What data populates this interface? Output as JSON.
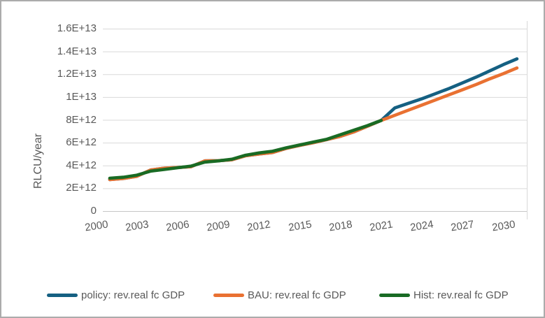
{
  "chart_data": {
    "type": "line",
    "title": "",
    "xlabel": "",
    "ylabel": "RLCU/year",
    "ylim": [
      0,
      16000000000000
    ],
    "ytick_step": 2000000000000,
    "ytick_labels": [
      "1.6E+13",
      "1.4E+13",
      "1.2E+13",
      "1E+13",
      "8E+12",
      "6E+12",
      "4E+12",
      "2E+12",
      "0"
    ],
    "xlim": [
      2000,
      2031
    ],
    "xtick_labels": [
      "2000",
      "2003",
      "2006",
      "2009",
      "2012",
      "2015",
      "2018",
      "2021",
      "2024",
      "2027",
      "2030"
    ],
    "grid": true,
    "legend_position": "bottom",
    "x": [
      2001,
      2002,
      2003,
      2004,
      2005,
      2006,
      2007,
      2008,
      2009,
      2010,
      2011,
      2012,
      2013,
      2014,
      2015,
      2016,
      2017,
      2018,
      2019,
      2020,
      2021,
      2022,
      2023,
      2024,
      2025,
      2026,
      2027,
      2028,
      2029,
      2030,
      2031
    ],
    "series": [
      {
        "name": "policy: rev.real fc GDP",
        "color": "#156082",
        "values": [
          2760000000000.0,
          2860000000000.0,
          3050000000000.0,
          3600000000000.0,
          3760000000000.0,
          3820000000000.0,
          3900000000000.0,
          4400000000000.0,
          4420000000000.0,
          4500000000000.0,
          4850000000000.0,
          5000000000000.0,
          5140000000000.0,
          5500000000000.0,
          5760000000000.0,
          6000000000000.0,
          6280000000000.0,
          6560000000000.0,
          6950000000000.0,
          7450000000000.0,
          7950000000000.0,
          9050000000000.0,
          9450000000000.0,
          9850000000000.0,
          10300000000000.0,
          10750000000000.0,
          11250000000000.0,
          11750000000000.0,
          12300000000000.0,
          12850000000000.0,
          13350000000000.0
        ]
      },
      {
        "name": "BAU: rev.real fc GDP",
        "color": "#E97132",
        "values": [
          2760000000000.0,
          2860000000000.0,
          3050000000000.0,
          3600000000000.0,
          3760000000000.0,
          3820000000000.0,
          3900000000000.0,
          4400000000000.0,
          4420000000000.0,
          4500000000000.0,
          4850000000000.0,
          5000000000000.0,
          5140000000000.0,
          5500000000000.0,
          5760000000000.0,
          6000000000000.0,
          6280000000000.0,
          6560000000000.0,
          6950000000000.0,
          7450000000000.0,
          7950000000000.0,
          8400000000000.0,
          8850000000000.0,
          9300000000000.0,
          9750000000000.0,
          10200000000000.0,
          10650000000000.0,
          11100000000000.0,
          11600000000000.0,
          12050000000000.0,
          12550000000000.0
        ]
      },
      {
        "name": "Hist: rev.real fc GDP",
        "color": "#196B24",
        "values": [
          2880000000000.0,
          2970000000000.0,
          3150000000000.0,
          3500000000000.0,
          3650000000000.0,
          3800000000000.0,
          3950000000000.0,
          4300000000000.0,
          4400000000000.0,
          4550000000000.0,
          4900000000000.0,
          5100000000000.0,
          5250000000000.0,
          5550000000000.0,
          5800000000000.0,
          6050000000000.0,
          6300000000000.0,
          6700000000000.0,
          7100000000000.0,
          7500000000000.0,
          7950000000000.0,
          null,
          null,
          null,
          null,
          null,
          null,
          null,
          null,
          null,
          null
        ]
      }
    ]
  },
  "colors": {
    "gridline": "#d9d9d9",
    "axis_line": "#c6c6c6",
    "text": "#595959",
    "canvas_border": "#ababab"
  }
}
